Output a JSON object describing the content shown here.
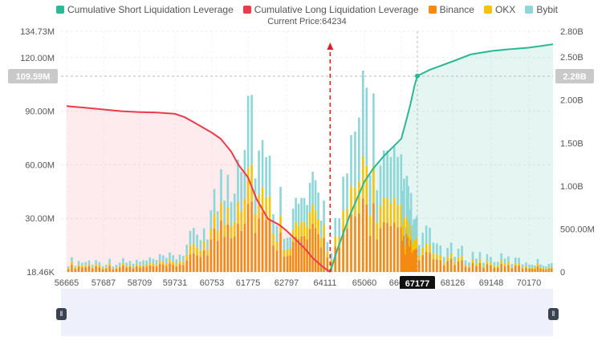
{
  "legend": [
    {
      "label": "Cumulative Short Liquidation Leverage",
      "color": "#2bb894"
    },
    {
      "label": "Cumulative Long Liquidation Leverage",
      "color": "#ec3b4a"
    },
    {
      "label": "Binance",
      "color": "#f58a12"
    },
    {
      "label": "OKX",
      "color": "#f5c30b"
    },
    {
      "label": "Bybit",
      "color": "#8ed6d8"
    }
  ],
  "current_price_label": "Current Price:64234",
  "chart_data": {
    "type": "bar",
    "x_ticks": [
      "56665",
      "57687",
      "58709",
      "59731",
      "60753",
      "61775",
      "62797",
      "64111",
      "65060",
      "66082",
      "67177",
      "68126",
      "69148",
      "70170"
    ],
    "left_axis_ticks": [
      "134.73M",
      "120.00M",
      "90.00M",
      "60.00M",
      "30.00M",
      "18.46K"
    ],
    "right_axis_ticks": [
      "2.80B",
      "2.50B",
      "2.00B",
      "1.50B",
      "1.00B",
      "500.00M",
      "0"
    ],
    "left_ylim": [
      18460,
      134730000
    ],
    "right_ylim": [
      0,
      2800000000
    ],
    "crosshair": {
      "x_label": "67177",
      "left_value_label": "109.59M",
      "right_value_label": "2.28B"
    },
    "current_price": 64234,
    "series_cumulative_long": {
      "name": "Cumulative Long Liquidation Leverage",
      "x": [
        56665,
        57200,
        57687,
        58200,
        58709,
        59200,
        59731,
        60000,
        60300,
        60753,
        61000,
        61300,
        61500,
        61775,
        62000,
        62300,
        62600,
        62797,
        63100,
        63400,
        63700,
        64000,
        64111,
        64234
      ],
      "values": [
        1930000000.0,
        1910000000.0,
        1890000000.0,
        1870000000.0,
        1860000000.0,
        1855000000.0,
        1840000000.0,
        1800000000.0,
        1730000000.0,
        1620000000.0,
        1550000000.0,
        1400000000.0,
        1250000000.0,
        1100000000.0,
        850000000.0,
        620000000.0,
        550000000.0,
        480000000.0,
        380000000.0,
        280000000.0,
        160000000.0,
        70000000.0,
        40000000.0,
        0.0
      ]
    },
    "series_cumulative_short": {
      "name": "Cumulative Short Liquidation Leverage",
      "x": [
        64234,
        64400,
        64700,
        65060,
        65300,
        65600,
        66082,
        66400,
        66700,
        67000,
        67177,
        67500,
        68126,
        68600,
        69148,
        69600,
        70170,
        70600,
        71000
      ],
      "values": [
        0.0,
        250000000.0,
        650000000.0,
        1050000000.0,
        1200000000.0,
        1350000000.0,
        1550000000.0,
        1750000000.0,
        1950000000.0,
        2180000000.0,
        2280000000.0,
        2350000000.0,
        2450000000.0,
        2530000000.0,
        2570000000.0,
        2590000000.0,
        2610000000.0,
        2630000000.0,
        2650000000.0
      ]
    },
    "series_binance": {
      "name": "Binance",
      "profile": [
        [
          56665,
          3000000.0
        ],
        [
          58709,
          2500000.0
        ],
        [
          59731,
          3500000.0
        ],
        [
          60300,
          8000000.0
        ],
        [
          60753,
          18000000.0
        ],
        [
          61300,
          28000000.0
        ],
        [
          61775,
          40000000.0
        ],
        [
          62100,
          28000000.0
        ],
        [
          62797,
          14000000.0
        ],
        [
          63400,
          18000000.0
        ],
        [
          64000,
          20000000.0
        ],
        [
          64234,
          8000000.0
        ],
        [
          64700,
          22000000.0
        ],
        [
          65060,
          38000000.0
        ],
        [
          65500,
          24000000.0
        ],
        [
          66082,
          18000000.0
        ],
        [
          66700,
          14000000.0
        ],
        [
          67177,
          9000000.0
        ],
        [
          68126,
          5000000.0
        ],
        [
          69148,
          3500000.0
        ],
        [
          70170,
          2500000.0
        ],
        [
          71000,
          2000000.0
        ]
      ]
    },
    "series_okx": {
      "name": "OKX",
      "profile": [
        [
          56665,
          1000000.0
        ],
        [
          58709,
          1000000.0
        ],
        [
          59731,
          1500000.0
        ],
        [
          60753,
          6000000.0
        ],
        [
          61300,
          10000000.0
        ],
        [
          61775,
          22000000.0
        ],
        [
          62100,
          12000000.0
        ],
        [
          62797,
          6000000.0
        ],
        [
          63400,
          7000000.0
        ],
        [
          64000,
          8000000.0
        ],
        [
          64234,
          3000000.0
        ],
        [
          64700,
          10000000.0
        ],
        [
          65060,
          22000000.0
        ],
        [
          65500,
          12000000.0
        ],
        [
          66082,
          9000000.0
        ],
        [
          66700,
          6000000.0
        ],
        [
          67177,
          4000000.0
        ],
        [
          68126,
          2000000.0
        ],
        [
          69148,
          1500000.0
        ],
        [
          70170,
          1000000.0
        ],
        [
          71000,
          1000000.0
        ]
      ]
    },
    "series_bybit": {
      "name": "Bybit",
      "profile": [
        [
          56665,
          2000000.0
        ],
        [
          58709,
          2000000.0
        ],
        [
          59731,
          3000000.0
        ],
        [
          60753,
          10000000.0
        ],
        [
          61300,
          20000000.0
        ],
        [
          61775,
          42000000.0
        ],
        [
          62100,
          22000000.0
        ],
        [
          62797,
          10000000.0
        ],
        [
          63400,
          12000000.0
        ],
        [
          64000,
          14000000.0
        ],
        [
          64234,
          5000000.0
        ],
        [
          64700,
          18000000.0
        ],
        [
          65060,
          45000000.0
        ],
        [
          65500,
          22000000.0
        ],
        [
          66082,
          20000000.0
        ],
        [
          66700,
          14000000.0
        ],
        [
          67177,
          8000000.0
        ],
        [
          68126,
          4000000.0
        ],
        [
          69148,
          3000000.0
        ],
        [
          70170,
          2000000.0
        ],
        [
          71000,
          2000000.0
        ]
      ]
    }
  }
}
